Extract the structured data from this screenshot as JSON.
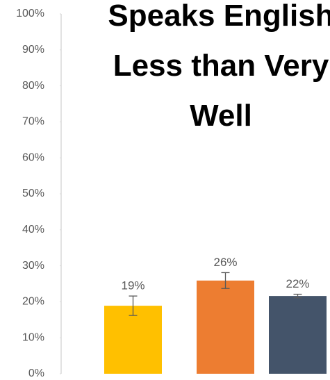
{
  "chart_data": {
    "type": "bar",
    "title": "Speaks English Less than Very Well",
    "categories": [
      null,
      null,
      null
    ],
    "values": [
      18.9,
      25.9,
      21.6
    ],
    "value_labels": [
      "19%",
      "26%",
      "22%"
    ],
    "errors": [
      2.7,
      2.2,
      0.5
    ],
    "colors": [
      "#FFC000",
      "#ED7D31",
      "#44546A"
    ],
    "ylim": [
      0,
      100
    ],
    "yticks": [
      {
        "value": 0,
        "label": "0%"
      },
      {
        "value": 10,
        "label": "10%"
      },
      {
        "value": 20,
        "label": "20%"
      },
      {
        "value": 30,
        "label": "30%"
      },
      {
        "value": 40,
        "label": "40%"
      },
      {
        "value": 50,
        "label": "50%"
      },
      {
        "value": 60,
        "label": "60%"
      },
      {
        "value": 70,
        "label": "70%"
      },
      {
        "value": 80,
        "label": "80%"
      },
      {
        "value": 90,
        "label": "90%"
      },
      {
        "value": 100,
        "label": "100%"
      }
    ],
    "grid": false
  }
}
